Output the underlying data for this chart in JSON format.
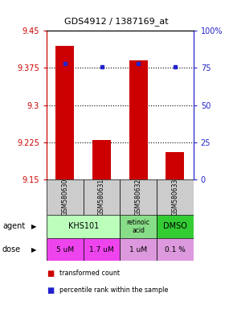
{
  "title": "GDS4912 / 1387169_at",
  "samples": [
    "GSM580630",
    "GSM580631",
    "GSM580632",
    "GSM580633"
  ],
  "bar_values": [
    9.42,
    9.23,
    9.39,
    9.205
  ],
  "percentile_values": [
    78,
    76,
    78,
    76
  ],
  "ymin": 9.15,
  "ymax": 9.45,
  "yticks": [
    9.15,
    9.225,
    9.3,
    9.375,
    9.45
  ],
  "ytick_labels": [
    "9.15",
    "9.225",
    "9.3",
    "9.375",
    "9.45"
  ],
  "y2ticks": [
    0,
    25,
    50,
    75,
    100
  ],
  "y2tick_labels": [
    "0",
    "25",
    "50",
    "75",
    "100%"
  ],
  "bar_color": "#cc0000",
  "dot_color": "#2222cc",
  "agent_spans": [
    [
      0,
      2,
      "KHS101",
      "#bbffbb"
    ],
    [
      2,
      3,
      "retinoic\nacid",
      "#88dd88"
    ],
    [
      3,
      4,
      "DMSO",
      "#33cc33"
    ]
  ],
  "dose_labels": [
    "5 uM",
    "1.7 uM",
    "1 uM",
    "0.1 %"
  ],
  "dose_colors": [
    "#ee44ee",
    "#ee44ee",
    "#dd99dd",
    "#dd99dd"
  ],
  "sample_bg": "#cccccc"
}
